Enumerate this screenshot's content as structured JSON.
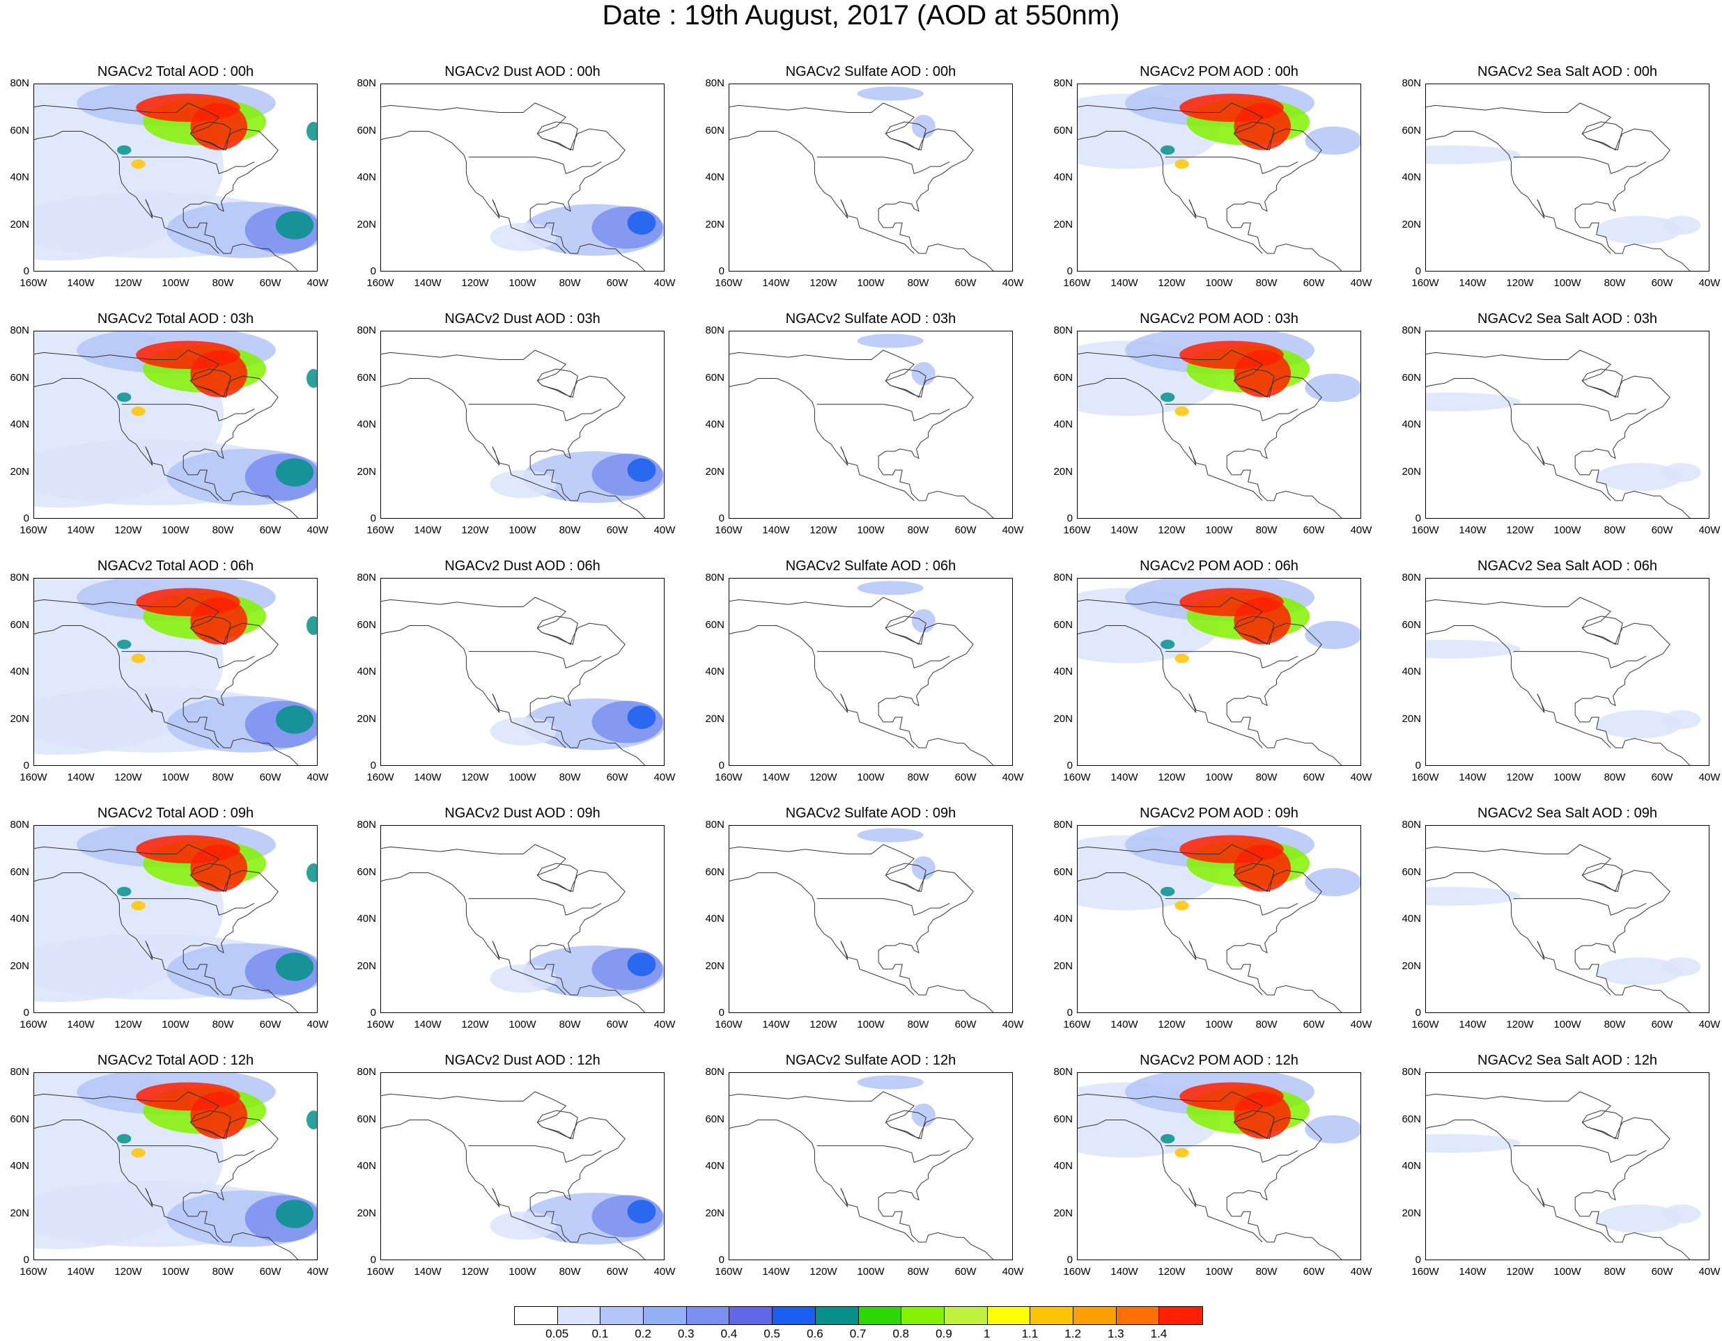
{
  "title": "Date : 19th August, 2017 (AOD at 550nm)",
  "panels": [
    [
      "NGACv2 Total AOD : 00h",
      "NGACv2 Dust AOD : 00h",
      "NGACv2 Sulfate AOD : 00h",
      "NGACv2 POM AOD : 00h",
      "NGACv2 Sea Salt AOD : 00h"
    ],
    [
      "NGACv2 Total AOD : 03h",
      "NGACv2 Dust AOD : 03h",
      "NGACv2 Sulfate AOD : 03h",
      "NGACv2 POM AOD : 03h",
      "NGACv2 Sea Salt AOD : 03h"
    ],
    [
      "NGACv2 Total AOD : 06h",
      "NGACv2 Dust AOD : 06h",
      "NGACv2 Sulfate AOD : 06h",
      "NGACv2 POM AOD : 06h",
      "NGACv2 Sea Salt AOD : 06h"
    ],
    [
      "NGACv2 Total AOD : 09h",
      "NGACv2 Dust AOD : 09h",
      "NGACv2 Sulfate AOD : 09h",
      "NGACv2 POM AOD : 09h",
      "NGACv2 Sea Salt  AOD : 09h"
    ],
    [
      "NGACv2 Total AOD  : 12h",
      "NGACv2 Dust AOD : 12h",
      "NGACv2 Sulfate AOD : 12h",
      "NGACv2 POM  AOD : 12h",
      "NGACv2 Sea Salt  AOD : 12h"
    ]
  ],
  "y_ticks": [
    "80N",
    "60N",
    "40N",
    "20N",
    "0"
  ],
  "x_ticks": [
    "160W",
    "140W",
    "120W",
    "100W",
    "80W",
    "60W",
    "40W"
  ],
  "colorbar": {
    "labels": [
      "0.05",
      "0.1",
      "0.2",
      "0.3",
      "0.4",
      "0.5",
      "0.6",
      "0.7",
      "0.8",
      "0.9",
      "1",
      "1.1",
      "1.2",
      "1.3",
      "1.4"
    ],
    "colors": [
      "#ffffff",
      "#dbe4fb",
      "#b4c6f7",
      "#93aff5",
      "#7a8ff0",
      "#5f66e8",
      "#1a5ff0",
      "#059089",
      "#2bd900",
      "#82f200",
      "#bff23d",
      "#ffff00",
      "#ffc400",
      "#ff9f00",
      "#ff7000",
      "#ff2000"
    ]
  }
}
